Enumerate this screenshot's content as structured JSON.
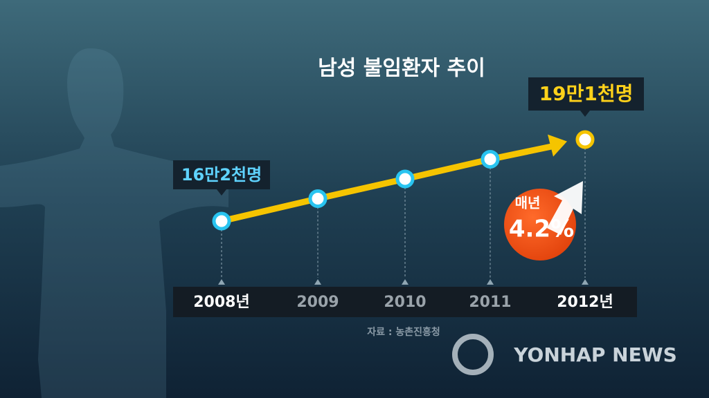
{
  "chart_data": {
    "type": "line",
    "title": "남성 불임환자 추이",
    "categories": [
      "2008년",
      "2009",
      "2010",
      "2011",
      "2012년"
    ],
    "values": [
      162000,
      170000,
      177000,
      184000,
      191000
    ],
    "value_labels": [
      "16만2천명",
      null,
      null,
      null,
      "19만1천명"
    ],
    "color": "#f5c400",
    "annotation": [
      "매년",
      "4.2%"
    ],
    "source": "자료 : 농촌진흥청",
    "logo": "YONHAP NEWS"
  }
}
